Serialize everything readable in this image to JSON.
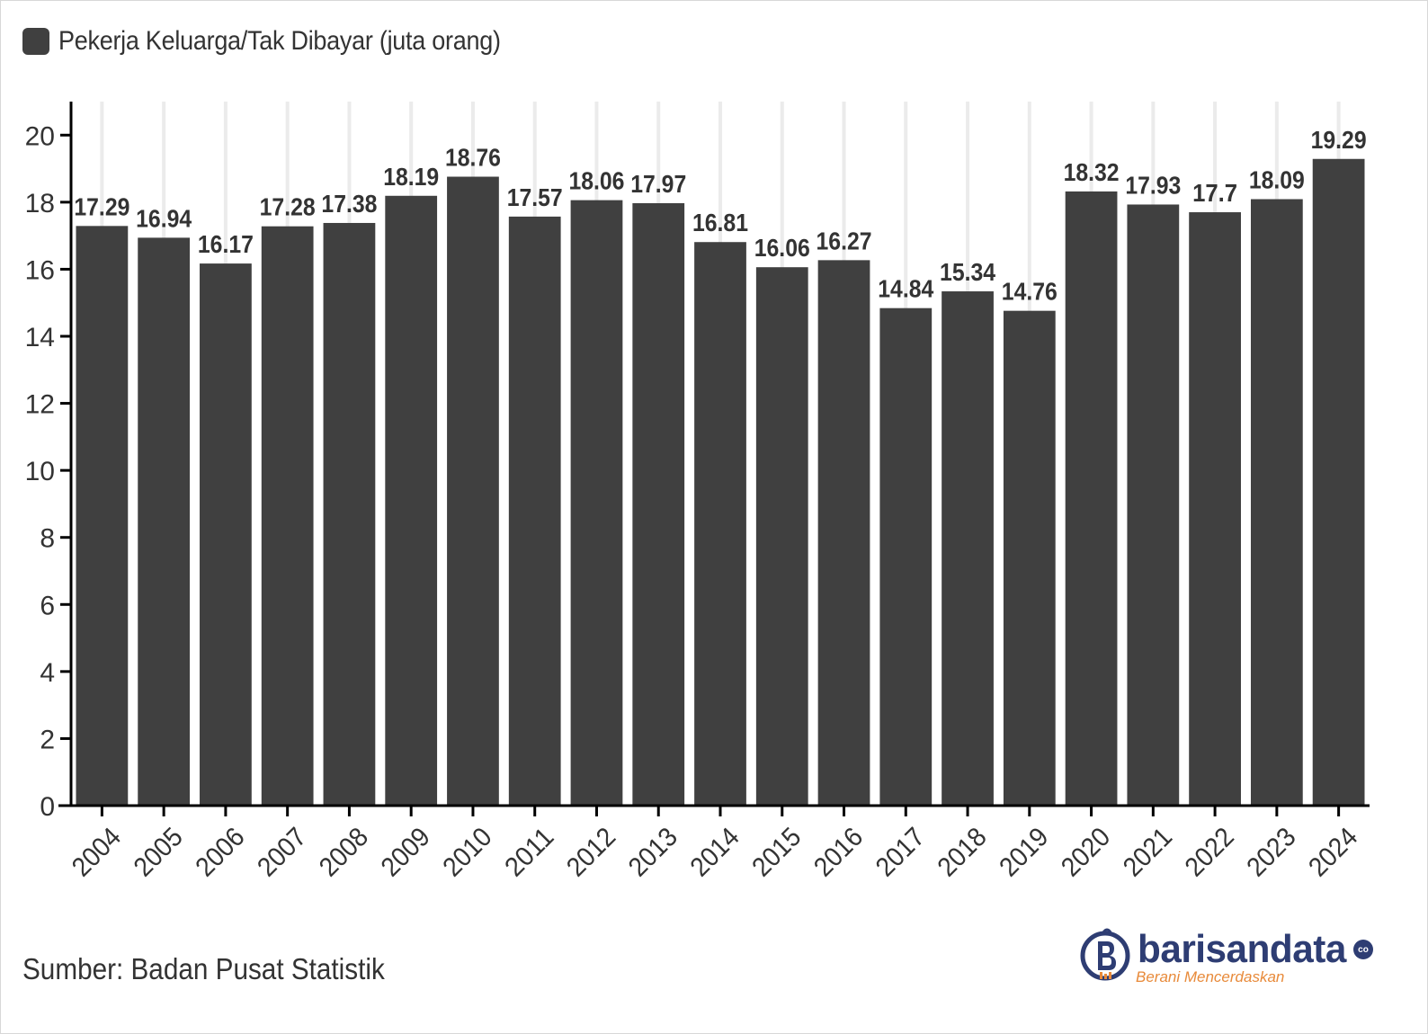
{
  "chart_data": {
    "type": "bar",
    "title": "",
    "xlabel": "",
    "ylabel": "",
    "legend": {
      "placement": "top-left",
      "entries": [
        "Pekerja Keluarga/Tak Dibayar (juta orang)"
      ]
    },
    "series": [
      {
        "name": "Pekerja Keluarga/Tak Dibayar (juta orang)",
        "color": "#404040",
        "values": [
          17.29,
          16.94,
          16.17,
          17.28,
          17.38,
          18.19,
          18.76,
          17.57,
          18.06,
          17.97,
          16.81,
          16.06,
          16.27,
          14.84,
          15.34,
          14.76,
          18.32,
          17.93,
          17.7,
          18.09,
          19.29
        ]
      }
    ],
    "categories": [
      "2004",
      "2005",
      "2006",
      "2007",
      "2008",
      "2009",
      "2010",
      "2011",
      "2012",
      "2013",
      "2014",
      "2015",
      "2016",
      "2017",
      "2018",
      "2019",
      "2020",
      "2021",
      "2022",
      "2023",
      "2024"
    ],
    "data_labels": [
      "17.29",
      "16.94",
      "16.17",
      "17.28",
      "17.38",
      "18.19",
      "18.76",
      "17.57",
      "18.06",
      "17.97",
      "16.81",
      "16.06",
      "16.27",
      "14.84",
      "15.34",
      "14.76",
      "18.32",
      "17.93",
      "17.7",
      "18.09",
      "19.29"
    ],
    "ylim": [
      0,
      21
    ],
    "y_ticks": [
      0,
      2,
      4,
      6,
      8,
      10,
      12,
      14,
      16,
      18,
      20
    ],
    "y_tick_labels": [
      "0",
      "2",
      "4",
      "6",
      "8",
      "10",
      "12",
      "14",
      "16",
      "18",
      "20"
    ],
    "grid": {
      "vertical": true,
      "horizontal": false,
      "color": "#ebebeb"
    },
    "axis_color": "#000000",
    "x_tick_rotation_deg": -45
  },
  "source": "Sumber: Badan Pusat Statistik",
  "logo": {
    "name": "barisandata",
    "tagline": "Berani Mencerdaskan",
    "suffix": "co",
    "primary_color": "#2e3d73",
    "accent_color": "#e88a3a"
  }
}
